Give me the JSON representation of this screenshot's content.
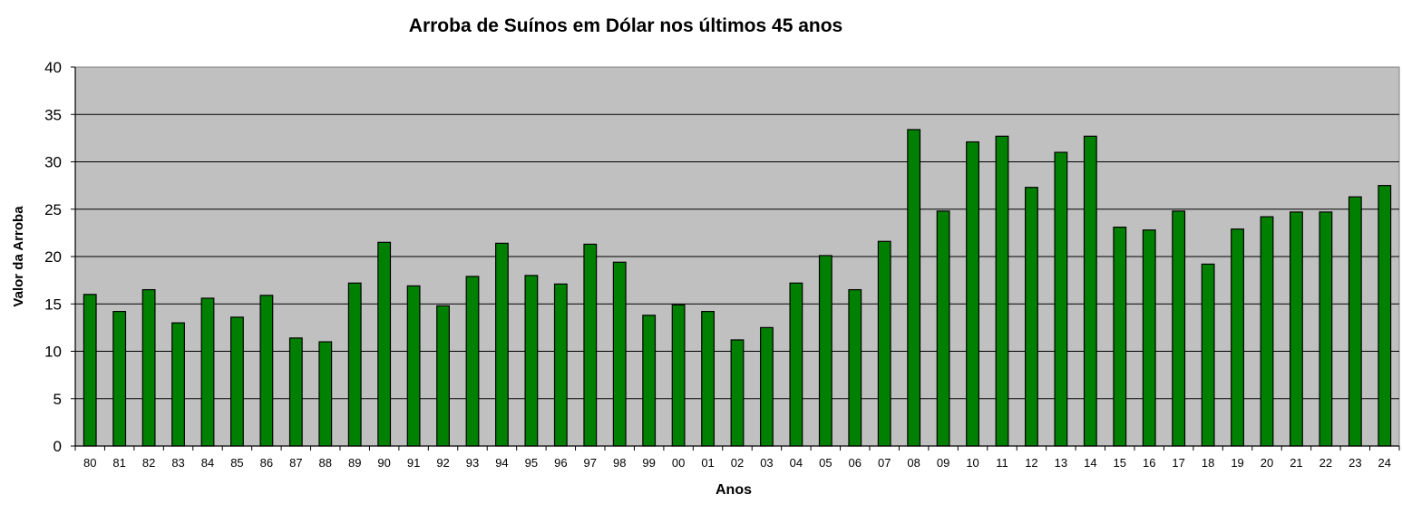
{
  "chart_data": {
    "type": "bar",
    "title": "Arroba de Suínos em Dólar nos últimos 45 anos",
    "xlabel": "Anos",
    "ylabel": "Valor da Arroba",
    "ylim": [
      0,
      40
    ],
    "yticks": [
      0,
      5,
      10,
      15,
      20,
      25,
      30,
      35,
      40
    ],
    "grid": true,
    "plot_background": "#c0c0c0",
    "bar_color": "#008000",
    "categories": [
      "80",
      "81",
      "82",
      "83",
      "84",
      "85",
      "86",
      "87",
      "88",
      "89",
      "90",
      "91",
      "92",
      "93",
      "94",
      "95",
      "96",
      "97",
      "98",
      "99",
      "00",
      "01",
      "02",
      "03",
      "04",
      "05",
      "06",
      "07",
      "08",
      "09",
      "10",
      "11",
      "12",
      "13",
      "14",
      "15",
      "16",
      "17",
      "18",
      "19",
      "20",
      "21",
      "22",
      "23",
      "24"
    ],
    "values": [
      16.0,
      14.2,
      16.5,
      13.0,
      15.6,
      13.6,
      15.9,
      11.4,
      11.0,
      17.2,
      21.5,
      16.9,
      14.8,
      17.9,
      21.4,
      18.0,
      17.1,
      21.3,
      19.4,
      13.8,
      14.9,
      14.2,
      11.2,
      12.5,
      17.2,
      20.1,
      16.5,
      21.6,
      33.4,
      24.8,
      32.1,
      32.7,
      27.3,
      31.0,
      32.7,
      23.1,
      22.8,
      24.8,
      19.2,
      22.9,
      24.2,
      24.7,
      24.7,
      26.3,
      27.5
    ]
  }
}
